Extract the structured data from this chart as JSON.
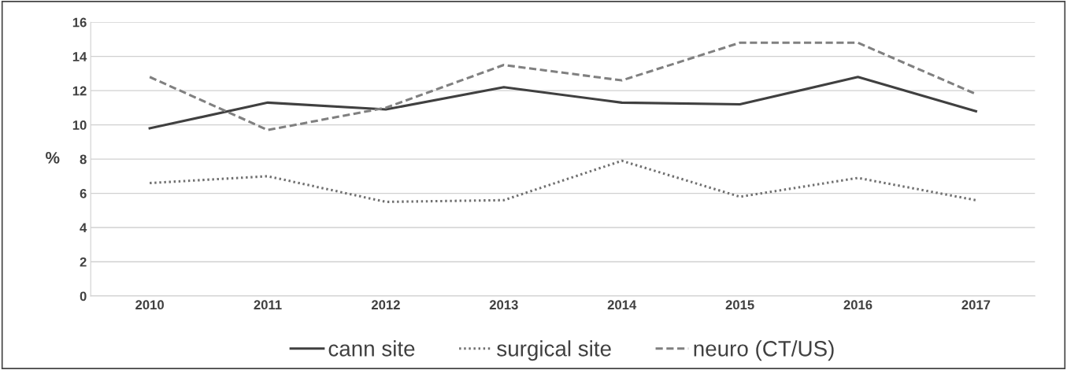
{
  "chart_data": {
    "type": "line",
    "ylabel": "%",
    "categories": [
      "2010",
      "2011",
      "2012",
      "2013",
      "2014",
      "2015",
      "2016",
      "2017"
    ],
    "series": [
      {
        "name": "cann site",
        "color": "#404040",
        "line_style": "solid",
        "values": [
          9.8,
          11.3,
          10.9,
          12.2,
          11.3,
          11.2,
          12.8,
          10.8
        ]
      },
      {
        "name": "surgical site",
        "color": "#707070",
        "line_style": "dotted",
        "values": [
          6.6,
          7.0,
          5.5,
          5.6,
          7.9,
          5.8,
          6.9,
          5.6
        ]
      },
      {
        "name": "neuro (CT/US)",
        "color": "#808080",
        "line_style": "dashed",
        "values": [
          12.8,
          9.7,
          11.0,
          13.5,
          12.6,
          14.8,
          14.8,
          11.8
        ]
      }
    ],
    "ylim": [
      0,
      16
    ],
    "yticks": [
      0,
      2,
      4,
      6,
      8,
      10,
      12,
      14,
      16
    ],
    "grid": "y",
    "legend": "bottom",
    "marker": "none"
  }
}
